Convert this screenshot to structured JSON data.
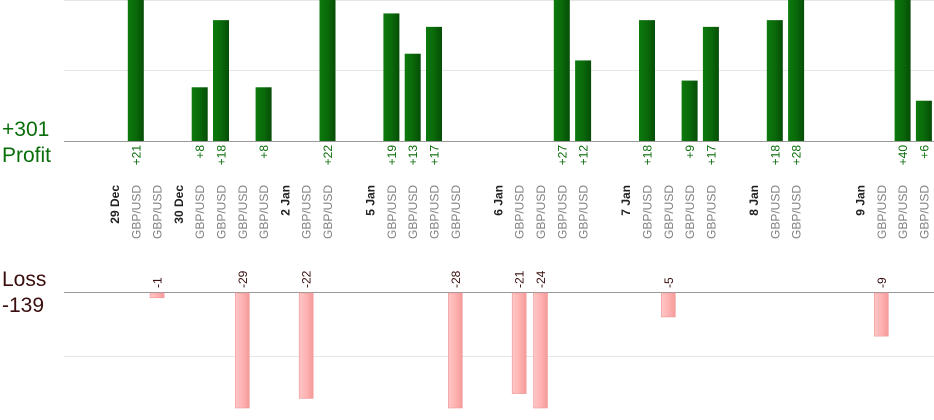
{
  "summary": {
    "profit_total": "+301",
    "profit_label": "Profit",
    "loss_label": "Loss",
    "loss_total": "-139"
  },
  "colors": {
    "profit_bar": "#0a6a0a",
    "loss_bar": "#ffb3b3",
    "profit_text": "#0a6e0a",
    "loss_text": "#3a0e0e",
    "pair_text": "#808080",
    "grid": "#e6e6e6",
    "axis": "#999999"
  },
  "chart_data": {
    "type": "bar",
    "title": "",
    "slots": 40,
    "profit_scale_max": 21,
    "loss_scale_max": 24,
    "date_labels": [
      {
        "slot": 0,
        "text": "29 Dec"
      },
      {
        "slot": 3,
        "text": "30 Dec"
      },
      {
        "slot": 8,
        "text": "2 Jan"
      },
      {
        "slot": 12,
        "text": "5 Jan"
      },
      {
        "slot": 18,
        "text": "6 Jan"
      },
      {
        "slot": 24,
        "text": "7 Jan"
      },
      {
        "slot": 30,
        "text": "8 Jan"
      },
      {
        "slot": 35,
        "text": "9 Jan"
      }
    ],
    "trades": [
      {
        "slot": 1,
        "pair": "GBP/USD",
        "value": 21
      },
      {
        "slot": 2,
        "pair": "GBP/USD",
        "value": -1
      },
      {
        "slot": 4,
        "pair": "GBP/USD",
        "value": 8
      },
      {
        "slot": 5,
        "pair": "GBP/USD",
        "value": 18
      },
      {
        "slot": 6,
        "pair": "GBP/USD",
        "value": -29
      },
      {
        "slot": 7,
        "pair": "GBP/USD",
        "value": 8
      },
      {
        "slot": 9,
        "pair": "GBP/USD",
        "value": -22
      },
      {
        "slot": 10,
        "pair": "GBP/USD",
        "value": 22
      },
      {
        "slot": 13,
        "pair": "GBP/USD",
        "value": 19
      },
      {
        "slot": 14,
        "pair": "GBP/USD",
        "value": 13
      },
      {
        "slot": 15,
        "pair": "GBP/USD",
        "value": 17
      },
      {
        "slot": 16,
        "pair": "GBP/USD",
        "value": -28
      },
      {
        "slot": 19,
        "pair": "GBP/USD",
        "value": -21
      },
      {
        "slot": 20,
        "pair": "GBP/USD",
        "value": -24
      },
      {
        "slot": 21,
        "pair": "GBP/USD",
        "value": 27
      },
      {
        "slot": 22,
        "pair": "GBP/USD",
        "value": 12
      },
      {
        "slot": 25,
        "pair": "GBP/USD",
        "value": 18
      },
      {
        "slot": 26,
        "pair": "GBP/USD",
        "value": -5
      },
      {
        "slot": 27,
        "pair": "GBP/USD",
        "value": 9
      },
      {
        "slot": 28,
        "pair": "GBP/USD",
        "value": 17
      },
      {
        "slot": 31,
        "pair": "GBP/USD",
        "value": 18
      },
      {
        "slot": 32,
        "pair": "GBP/USD",
        "value": 28
      },
      {
        "slot": 36,
        "pair": "GBP/USD",
        "value": -9
      },
      {
        "slot": 37,
        "pair": "GBP/USD",
        "value": 40
      },
      {
        "slot": 38,
        "pair": "GBP/USD",
        "value": 6
      }
    ]
  }
}
